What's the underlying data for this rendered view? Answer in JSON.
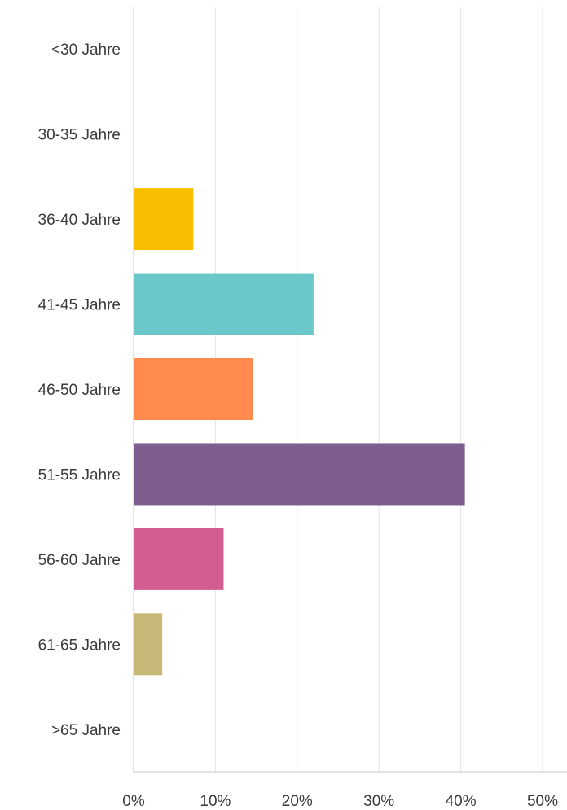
{
  "chart_data": {
    "type": "bar",
    "orientation": "horizontal",
    "categories": [
      "<30 Jahre",
      "30-35 Jahre",
      "36-40 Jahre",
      "41-45 Jahre",
      "46-50 Jahre",
      "51-55 Jahre",
      "56-60 Jahre",
      "61-65 Jahre",
      ">65 Jahre"
    ],
    "values": [
      0,
      0,
      7.3,
      22.0,
      14.6,
      40.5,
      11.0,
      3.5,
      0
    ],
    "colors": [
      "#f9be00",
      "#f9be00",
      "#f9be00",
      "#6ac8cb",
      "#ff8b4f",
      "#7d5e8f",
      "#d35d92",
      "#c8b877",
      "#f9be00"
    ],
    "xticks": [
      "0%",
      "10%",
      "20%",
      "30%",
      "40%",
      "50%"
    ],
    "xlim": [
      0,
      50
    ],
    "title": "",
    "xlabel": "",
    "ylabel": "",
    "grid": true,
    "legend": "none"
  }
}
